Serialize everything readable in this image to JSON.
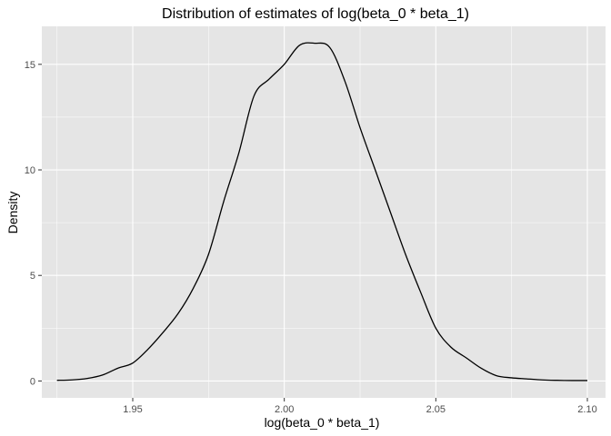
{
  "chart_data": {
    "type": "line",
    "title": "Distribution of estimates of log(beta_0 * beta_1)",
    "xlabel": "log(beta_0 * beta_1)",
    "ylabel": "Density",
    "xlim": [
      1.92,
      2.106
    ],
    "ylim": [
      -0.8,
      16.8
    ],
    "x_ticks": [
      1.95,
      2.0,
      2.05,
      2.1
    ],
    "x_tick_labels": [
      "1.95",
      "2.00",
      "2.05",
      "2.10"
    ],
    "y_ticks": [
      0,
      5,
      10,
      15
    ],
    "y_tick_labels": [
      "0",
      "5",
      "10",
      "15"
    ],
    "grid": true,
    "legend": "none",
    "colors": {
      "panel_bg": "#e5e5e5",
      "grid": "#ffffff",
      "line": "#000000",
      "tick_text": "#4d4d4d",
      "tick_mark": "#333333"
    },
    "series": [
      {
        "x": [
          1.925,
          1.93,
          1.935,
          1.94,
          1.945,
          1.95,
          1.955,
          1.96,
          1.965,
          1.97,
          1.975,
          1.98,
          1.985,
          1.99,
          1.995,
          2.0,
          2.005,
          2.01,
          2.015,
          2.02,
          2.025,
          2.03,
          2.035,
          2.04,
          2.045,
          2.05,
          2.055,
          2.06,
          2.065,
          2.07,
          2.075,
          2.08,
          2.085,
          2.09,
          2.095,
          2.1
        ],
        "y": [
          0.03,
          0.05,
          0.12,
          0.28,
          0.6,
          0.85,
          1.5,
          2.3,
          3.2,
          4.4,
          6.0,
          8.5,
          10.8,
          13.5,
          14.3,
          15.0,
          15.9,
          16.0,
          15.8,
          14.2,
          12.0,
          10.0,
          8.0,
          6.0,
          4.2,
          2.5,
          1.6,
          1.1,
          0.6,
          0.25,
          0.15,
          0.1,
          0.05,
          0.03,
          0.02,
          0.02
        ]
      }
    ]
  }
}
